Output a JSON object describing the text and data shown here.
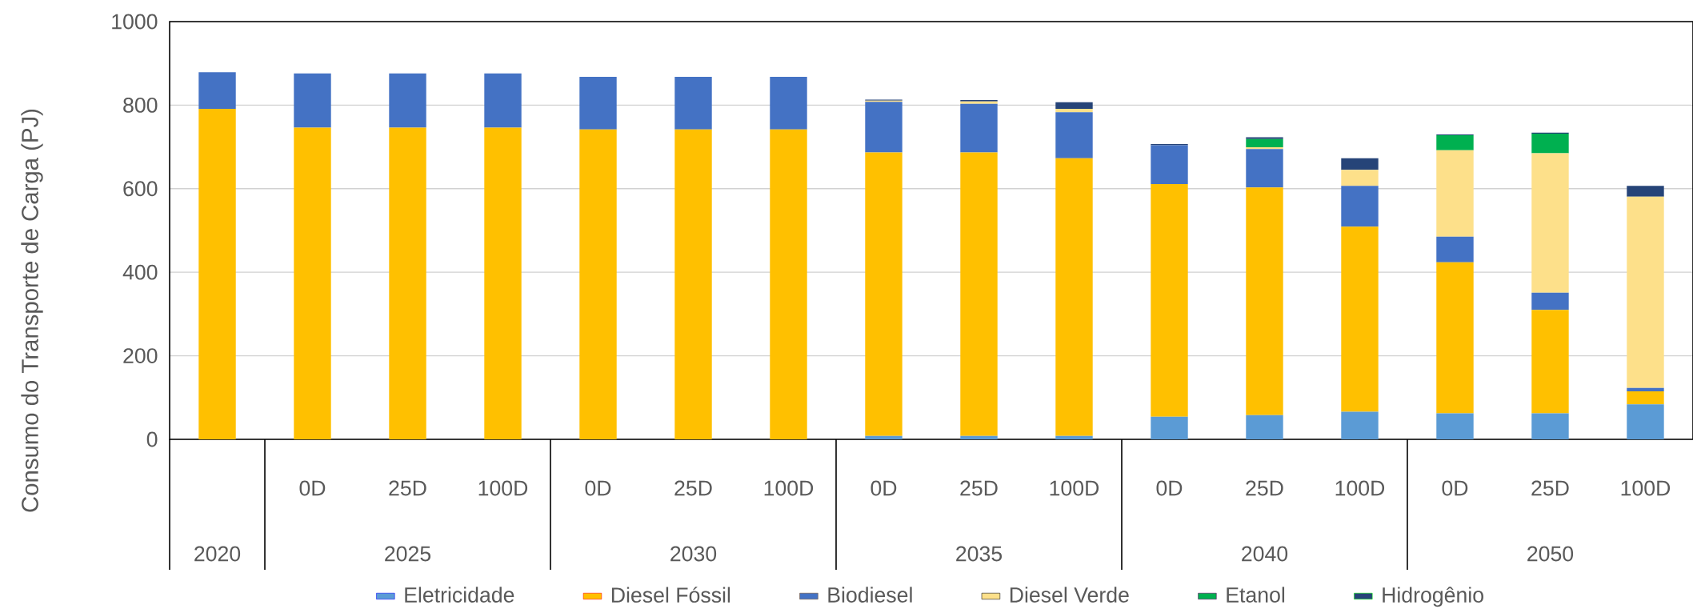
{
  "chart_data": {
    "type": "bar",
    "stacked": true,
    "ylabel": "Consumo do Transporte de Carga (PJ)",
    "categories": [
      null,
      "0D",
      "25D",
      "100D",
      "0D",
      "25D",
      "100D",
      "0D",
      "25D",
      "100D",
      "0D",
      "25D",
      "100D",
      "0D",
      "25D",
      "100D"
    ],
    "annotations": [
      "2020",
      "2025",
      "2030",
      "2035",
      "2040",
      "2050"
    ],
    "series": [
      {
        "name": "Eletricidade",
        "color": "#5b9bd5",
        "values": [
          0,
          0,
          0,
          0,
          0,
          0,
          0,
          8,
          8,
          8,
          54,
          58,
          66,
          62,
          62,
          84
        ]
      },
      {
        "name": "Diesel Fóssil",
        "color": "#ffc000",
        "values": [
          791,
          746,
          746,
          746,
          742,
          742,
          742,
          679,
          679,
          665,
          557,
          545,
          443,
          362,
          248,
          31
        ]
      },
      {
        "name": "Biodiesel",
        "color": "#4472c4",
        "values": [
          88,
          130,
          130,
          130,
          126,
          126,
          126,
          121,
          116,
          110,
          93,
          92,
          98,
          61,
          41,
          8
        ]
      },
      {
        "name": "Diesel Verde",
        "color": "#fde08a",
        "values": [
          0,
          0,
          0,
          0,
          0,
          0,
          0,
          3,
          6,
          8,
          0,
          4,
          38,
          207,
          334,
          458
        ]
      },
      {
        "name": "Etanol",
        "color": "#00b050",
        "values": [
          0,
          0,
          0,
          0,
          0,
          0,
          0,
          0,
          0,
          0,
          0,
          20,
          0,
          36,
          47,
          0
        ]
      },
      {
        "name": "Hidrogênio",
        "color": "#264478",
        "values": [
          0,
          0,
          0,
          0,
          0,
          0,
          0,
          2,
          3,
          16,
          3,
          4,
          28,
          2,
          2,
          26
        ]
      }
    ],
    "ylim": [
      0,
      1000
    ],
    "yticks": [
      0,
      200,
      400,
      600,
      800,
      1000
    ],
    "grid": "y",
    "legend": "bottom"
  }
}
